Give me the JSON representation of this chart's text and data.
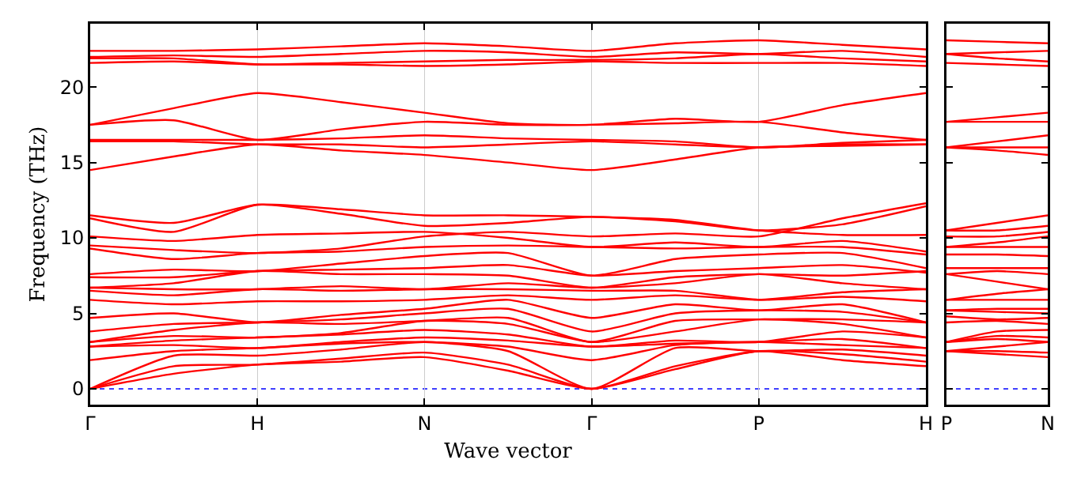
{
  "chart_data": [
    {
      "type": "line",
      "xlabel": "Wave vector",
      "ylabel": "Frequency (THz)",
      "categories": [
        "Γ",
        null,
        "H",
        null,
        "N",
        null,
        "Γ",
        null,
        "P",
        null,
        "H"
      ],
      "ylim": [
        -1.05,
        24.2
      ],
      "yticks": [
        0,
        5,
        10,
        15,
        20
      ],
      "grid": "x",
      "line_style": "solid",
      "marker": "none",
      "ref_lines": [
        {
          "axis": "y",
          "value": 0,
          "color": "#0000ff",
          "line_style": "dotted"
        }
      ],
      "series": [
        {
          "color": "#ff0000",
          "values": [
            0,
            1.0,
            1.6,
            1.8,
            2.1,
            1.2,
            0,
            1.3,
            2.5,
            1.9,
            1.5
          ]
        },
        {
          "color": "#ff0000",
          "values": [
            0,
            1.5,
            1.6,
            2.0,
            2.4,
            1.6,
            0,
            1.5,
            2.5,
            2.3,
            1.8
          ]
        },
        {
          "color": "#ff0000",
          "values": [
            0,
            2.2,
            2.2,
            2.6,
            3.1,
            2.5,
            0,
            2.7,
            2.5,
            2.6,
            2.2
          ]
        },
        {
          "color": "#ff0000",
          "values": [
            1.9,
            2.5,
            2.7,
            3.0,
            3.1,
            2.8,
            1.9,
            2.9,
            3.1,
            2.9,
            2.7
          ]
        },
        {
          "color": "#ff0000",
          "values": [
            2.8,
            2.9,
            2.7,
            3.1,
            3.4,
            3.2,
            2.8,
            3.0,
            3.1,
            3.3,
            2.7
          ]
        },
        {
          "color": "#ff0000",
          "values": [
            2.8,
            3.2,
            3.4,
            3.6,
            3.9,
            3.6,
            2.8,
            3.2,
            3.1,
            3.8,
            3.4
          ]
        },
        {
          "color": "#ff0000",
          "values": [
            3.1,
            3.5,
            3.4,
            3.7,
            4.5,
            4.3,
            3.1,
            3.8,
            4.6,
            4.3,
            3.4
          ]
        },
        {
          "color": "#ff0000",
          "values": [
            3.1,
            3.9,
            4.4,
            4.3,
            4.5,
            4.7,
            3.1,
            4.5,
            4.6,
            4.6,
            4.4
          ]
        },
        {
          "color": "#ff0000",
          "values": [
            3.8,
            4.3,
            4.4,
            4.6,
            5.0,
            5.3,
            3.8,
            5.0,
            5.2,
            5.1,
            4.4
          ]
        },
        {
          "color": "#ff0000",
          "values": [
            4.7,
            5.0,
            4.4,
            4.9,
            5.3,
            5.9,
            4.7,
            5.6,
            5.2,
            5.6,
            4.4
          ]
        },
        {
          "color": "#ff0000",
          "values": [
            5.9,
            5.6,
            5.8,
            5.8,
            5.9,
            6.2,
            5.9,
            6.2,
            5.9,
            6.4,
            6.6
          ]
        },
        {
          "color": "#ff0000",
          "values": [
            6.5,
            6.2,
            6.6,
            6.5,
            6.6,
            6.6,
            6.5,
            6.5,
            5.9,
            6.1,
            5.8
          ]
        },
        {
          "color": "#ff0000",
          "values": [
            6.7,
            6.6,
            6.6,
            6.8,
            6.6,
            7.0,
            6.7,
            7.0,
            7.6,
            7.0,
            6.6
          ]
        },
        {
          "color": "#ff0000",
          "values": [
            6.7,
            7.0,
            7.8,
            7.6,
            7.6,
            7.5,
            6.7,
            7.4,
            7.6,
            7.5,
            7.8
          ]
        },
        {
          "color": "#ff0000",
          "values": [
            7.4,
            7.4,
            7.8,
            7.9,
            8.0,
            8.2,
            7.5,
            7.8,
            8.0,
            8.2,
            7.7
          ]
        },
        {
          "color": "#ff0000",
          "values": [
            7.6,
            7.9,
            7.8,
            8.3,
            8.8,
            9.0,
            7.5,
            8.6,
            8.9,
            9.0,
            8.0
          ]
        },
        {
          "color": "#ff0000",
          "values": [
            9.3,
            8.6,
            9.0,
            9.1,
            9.4,
            9.5,
            9.4,
            9.3,
            9.4,
            9.4,
            8.9
          ]
        },
        {
          "color": "#ff0000",
          "values": [
            9.5,
            9.2,
            9.0,
            9.3,
            10.1,
            10.4,
            10.1,
            10.3,
            10.1,
            11.3,
            12.3
          ]
        },
        {
          "color": "#ff0000",
          "values": [
            10.1,
            9.8,
            10.2,
            10.3,
            10.4,
            10.0,
            9.4,
            9.7,
            9.4,
            9.8,
            9.1
          ]
        },
        {
          "color": "#ff0000",
          "values": [
            11.3,
            10.4,
            12.2,
            11.6,
            10.8,
            11.0,
            11.4,
            11.1,
            10.5,
            10.9,
            12.1
          ]
        },
        {
          "color": "#ff0000",
          "values": [
            11.5,
            11.0,
            12.2,
            11.9,
            11.5,
            11.5,
            11.4,
            11.2,
            10.5,
            10.2,
            10.2
          ]
        },
        {
          "color": "#ff0000",
          "values": [
            14.5,
            15.4,
            16.2,
            15.8,
            15.5,
            15.0,
            14.5,
            15.2,
            16.0,
            16.1,
            16.2
          ]
        },
        {
          "color": "#ff0000",
          "values": [
            16.4,
            16.4,
            16.2,
            16.2,
            16.0,
            16.2,
            16.4,
            16.2,
            16.0,
            16.2,
            16.2
          ]
        },
        {
          "color": "#ff0000",
          "values": [
            16.5,
            16.5,
            16.5,
            16.6,
            16.8,
            16.6,
            16.5,
            16.4,
            16.0,
            16.3,
            16.5
          ]
        },
        {
          "color": "#ff0000",
          "values": [
            17.5,
            17.8,
            16.5,
            17.2,
            17.7,
            17.5,
            17.5,
            17.6,
            17.7,
            17.0,
            16.5
          ]
        },
        {
          "color": "#ff0000",
          "values": [
            17.5,
            18.6,
            19.6,
            19.0,
            18.3,
            17.6,
            17.5,
            17.9,
            17.7,
            18.8,
            19.6
          ]
        },
        {
          "color": "#ff0000",
          "values": [
            21.6,
            21.7,
            21.5,
            21.5,
            21.4,
            21.5,
            21.7,
            21.6,
            21.6,
            21.6,
            21.4
          ]
        },
        {
          "color": "#ff0000",
          "values": [
            21.9,
            21.9,
            21.5,
            21.6,
            21.7,
            21.8,
            21.8,
            21.9,
            22.2,
            21.9,
            21.7
          ]
        },
        {
          "color": "#ff0000",
          "values": [
            22.0,
            22.1,
            22.0,
            22.2,
            22.4,
            22.3,
            22.0,
            22.3,
            22.2,
            22.4,
            22.0
          ]
        },
        {
          "color": "#ff0000",
          "values": [
            22.4,
            22.4,
            22.5,
            22.7,
            22.9,
            22.7,
            22.4,
            22.9,
            23.1,
            22.8,
            22.5
          ]
        }
      ]
    },
    {
      "type": "line",
      "categories": [
        "P",
        null,
        "N"
      ],
      "ylim": [
        -1.05,
        24.2
      ],
      "yticks": [
        0,
        5,
        10,
        15,
        20
      ],
      "tick_labels": "x",
      "line_style": "solid",
      "marker": "none",
      "ref_lines": [
        {
          "axis": "y",
          "value": 0,
          "color": "#0000ff",
          "line_style": "dotted"
        }
      ],
      "series": [
        {
          "color": "#ff0000",
          "values": [
            2.5,
            2.3,
            2.1
          ]
        },
        {
          "color": "#ff0000",
          "values": [
            2.5,
            2.5,
            2.4
          ]
        },
        {
          "color": "#ff0000",
          "values": [
            2.5,
            2.8,
            3.1
          ]
        },
        {
          "color": "#ff0000",
          "values": [
            3.1,
            3.3,
            3.1
          ]
        },
        {
          "color": "#ff0000",
          "values": [
            3.1,
            3.5,
            3.4
          ]
        },
        {
          "color": "#ff0000",
          "values": [
            3.1,
            3.8,
            3.9
          ]
        },
        {
          "color": "#ff0000",
          "values": [
            4.4,
            4.5,
            4.3
          ]
        },
        {
          "color": "#ff0000",
          "values": [
            4.8,
            4.6,
            4.7
          ]
        },
        {
          "color": "#ff0000",
          "values": [
            5.2,
            5.1,
            5.0
          ]
        },
        {
          "color": "#ff0000",
          "values": [
            5.2,
            5.3,
            5.3
          ]
        },
        {
          "color": "#ff0000",
          "values": [
            5.9,
            5.9,
            5.9
          ]
        },
        {
          "color": "#ff0000",
          "values": [
            5.9,
            6.3,
            6.6
          ]
        },
        {
          "color": "#ff0000",
          "values": [
            7.6,
            7.1,
            6.6
          ]
        },
        {
          "color": "#ff0000",
          "values": [
            7.6,
            7.8,
            7.6
          ]
        },
        {
          "color": "#ff0000",
          "values": [
            8.0,
            8.0,
            8.0
          ]
        },
        {
          "color": "#ff0000",
          "values": [
            8.9,
            8.9,
            8.8
          ]
        },
        {
          "color": "#ff0000",
          "values": [
            9.4,
            9.4,
            9.4
          ]
        },
        {
          "color": "#ff0000",
          "values": [
            9.4,
            9.7,
            10.1
          ]
        },
        {
          "color": "#ff0000",
          "values": [
            10.1,
            10.1,
            10.4
          ]
        },
        {
          "color": "#ff0000",
          "values": [
            10.5,
            10.5,
            10.8
          ]
        },
        {
          "color": "#ff0000",
          "values": [
            10.5,
            11.0,
            11.5
          ]
        },
        {
          "color": "#ff0000",
          "values": [
            16.0,
            15.8,
            15.5
          ]
        },
        {
          "color": "#ff0000",
          "values": [
            16.0,
            16.0,
            16.0
          ]
        },
        {
          "color": "#ff0000",
          "values": [
            16.0,
            16.4,
            16.8
          ]
        },
        {
          "color": "#ff0000",
          "values": [
            17.7,
            17.7,
            17.7
          ]
        },
        {
          "color": "#ff0000",
          "values": [
            17.7,
            18.0,
            18.3
          ]
        },
        {
          "color": "#ff0000",
          "values": [
            21.6,
            21.5,
            21.4
          ]
        },
        {
          "color": "#ff0000",
          "values": [
            22.2,
            21.9,
            21.7
          ]
        },
        {
          "color": "#ff0000",
          "values": [
            22.2,
            22.3,
            22.4
          ]
        },
        {
          "color": "#ff0000",
          "values": [
            23.1,
            23.0,
            22.9
          ]
        }
      ]
    }
  ]
}
